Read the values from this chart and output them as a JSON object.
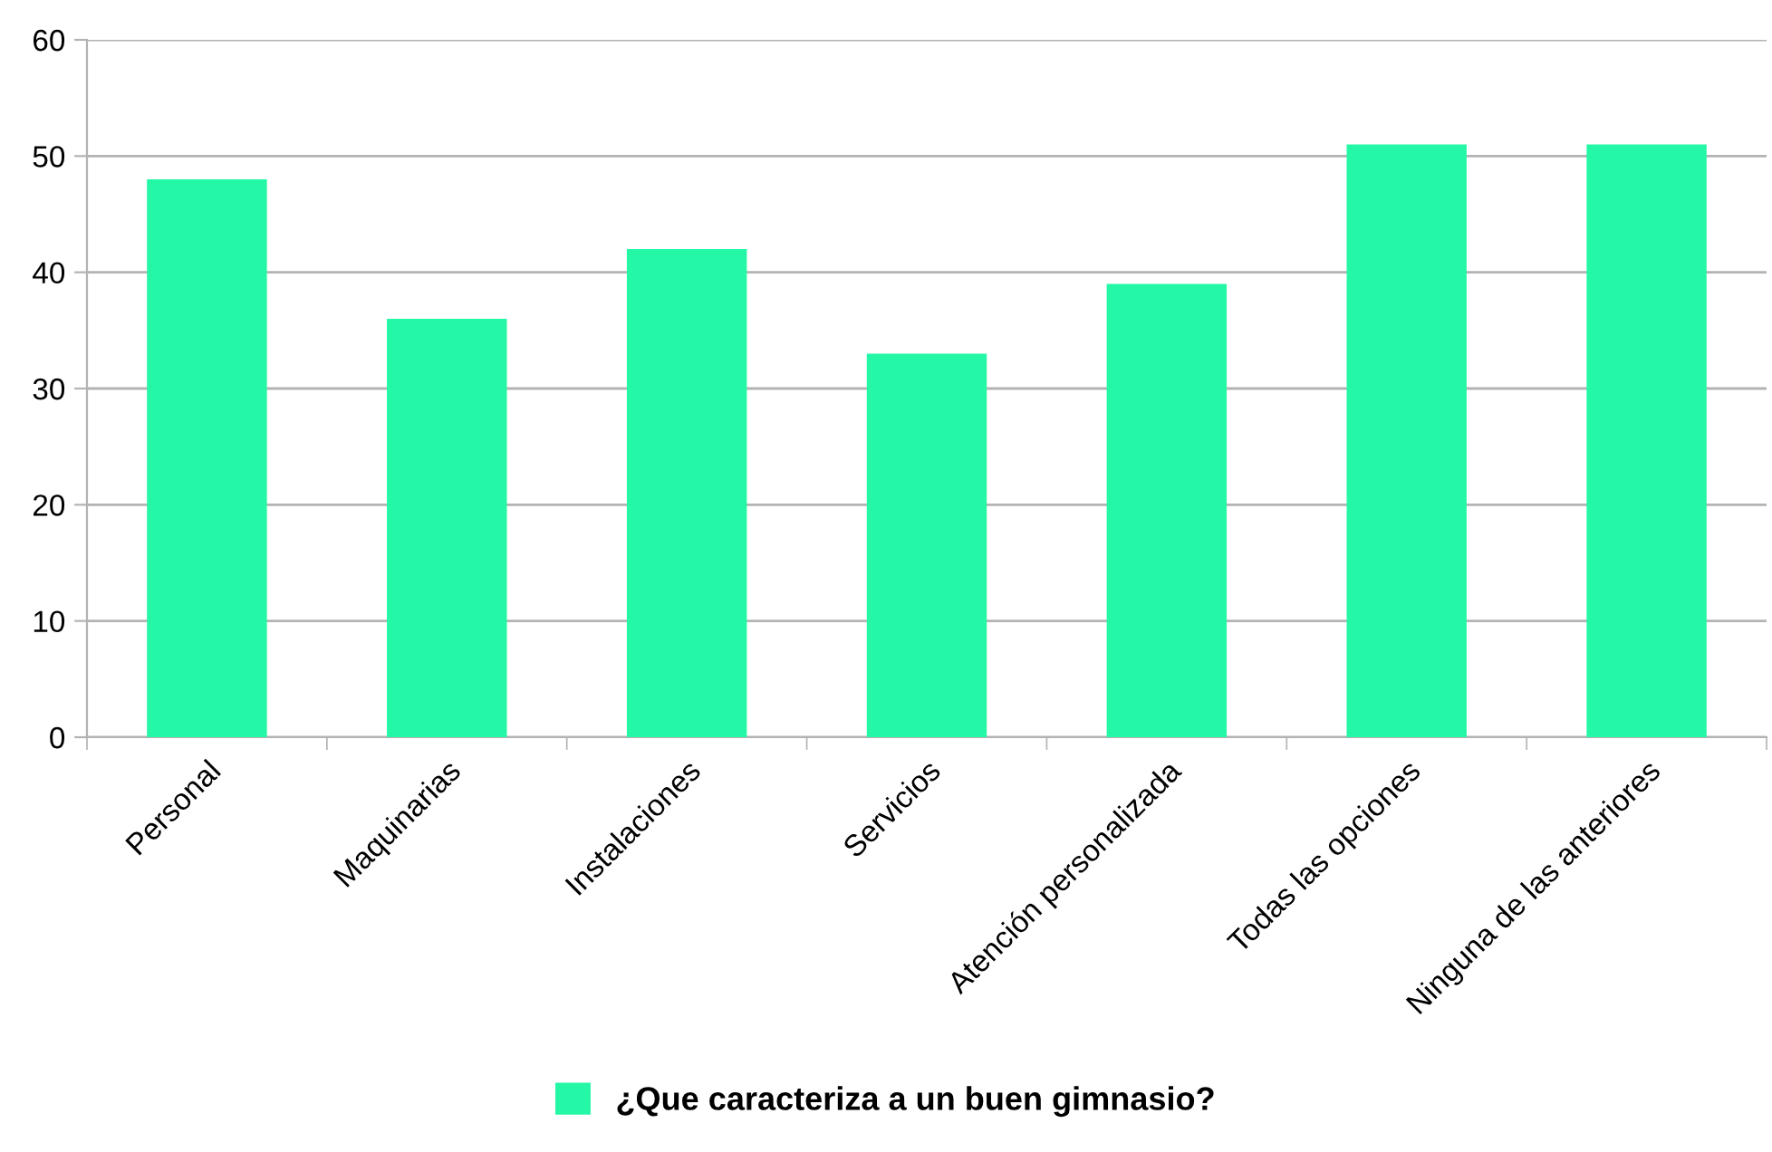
{
  "chart_data": {
    "type": "bar",
    "categories": [
      "Personal",
      "Maquinarias",
      "Instalaciones",
      "Servicios",
      "Atención personalizada",
      "Todas las opciones",
      "Ninguna de las anteriores"
    ],
    "series": [
      {
        "name": "¿Que caracteriza a un buen gimnasio?",
        "color": "#24f7a6",
        "values": [
          48,
          36,
          42,
          33,
          39,
          51,
          51
        ]
      }
    ],
    "ylim": [
      0,
      60
    ],
    "yticks": [
      0,
      10,
      20,
      30,
      40,
      50,
      60
    ],
    "grid": "y",
    "legend": "bottom"
  }
}
